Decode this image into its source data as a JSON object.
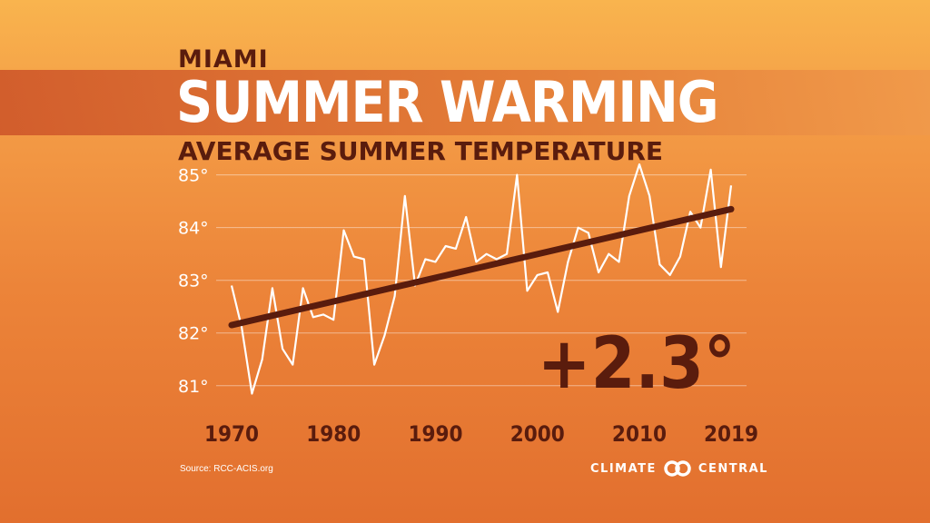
{
  "chart_data": {
    "type": "line",
    "kicker": "MIAMI",
    "title": "SUMMER WARMING",
    "subtitle": "AVERAGE SUMMER TEMPERATURE",
    "xlabel": "",
    "ylabel": "",
    "x": [
      1970,
      1971,
      1972,
      1973,
      1974,
      1975,
      1976,
      1977,
      1978,
      1979,
      1980,
      1981,
      1982,
      1983,
      1984,
      1985,
      1986,
      1987,
      1988,
      1989,
      1990,
      1991,
      1992,
      1993,
      1994,
      1995,
      1996,
      1997,
      1998,
      1999,
      2000,
      2001,
      2002,
      2003,
      2004,
      2005,
      2006,
      2007,
      2008,
      2009,
      2010,
      2011,
      2012,
      2013,
      2014,
      2015,
      2016,
      2017,
      2018,
      2019
    ],
    "series": [
      {
        "values": [
          82.9,
          82.1,
          80.85,
          81.5,
          82.85,
          81.7,
          81.4,
          82.85,
          82.3,
          82.35,
          82.25,
          83.95,
          83.45,
          83.4,
          81.4,
          81.95,
          82.7,
          84.6,
          82.9,
          83.4,
          83.35,
          83.65,
          83.6,
          84.2,
          83.35,
          83.5,
          83.4,
          83.5,
          85.0,
          82.8,
          83.1,
          83.15,
          82.4,
          83.35,
          84.0,
          83.9,
          83.15,
          83.5,
          83.35,
          84.6,
          85.2,
          84.6,
          83.3,
          83.1,
          83.45,
          84.3,
          84.0,
          85.1,
          83.25,
          84.8
        ],
        "color": "#ffffff"
      }
    ],
    "trend": {
      "start": [
        1970,
        82.15
      ],
      "end": [
        2019,
        84.35
      ],
      "color": "#5a1c0d"
    },
    "change_label": "+2.3°",
    "ylim": [
      80.6,
      85.2
    ],
    "yticks": [
      81,
      82,
      83,
      84,
      85
    ],
    "ytick_labels": [
      "81°",
      "82°",
      "83°",
      "84°",
      "85°"
    ],
    "xticks": [
      1970,
      1980,
      1990,
      2000,
      2010,
      2019
    ],
    "xtick_labels": [
      "1970",
      "1980",
      "1990",
      "2000",
      "2010",
      "2019"
    ],
    "grid": true
  },
  "footer": {
    "source": "Source: RCC-ACIS.org",
    "logo_left": "CLIMATE",
    "logo_right": "CENTRAL",
    "logo_icon": "climate-central-rings-icon"
  }
}
